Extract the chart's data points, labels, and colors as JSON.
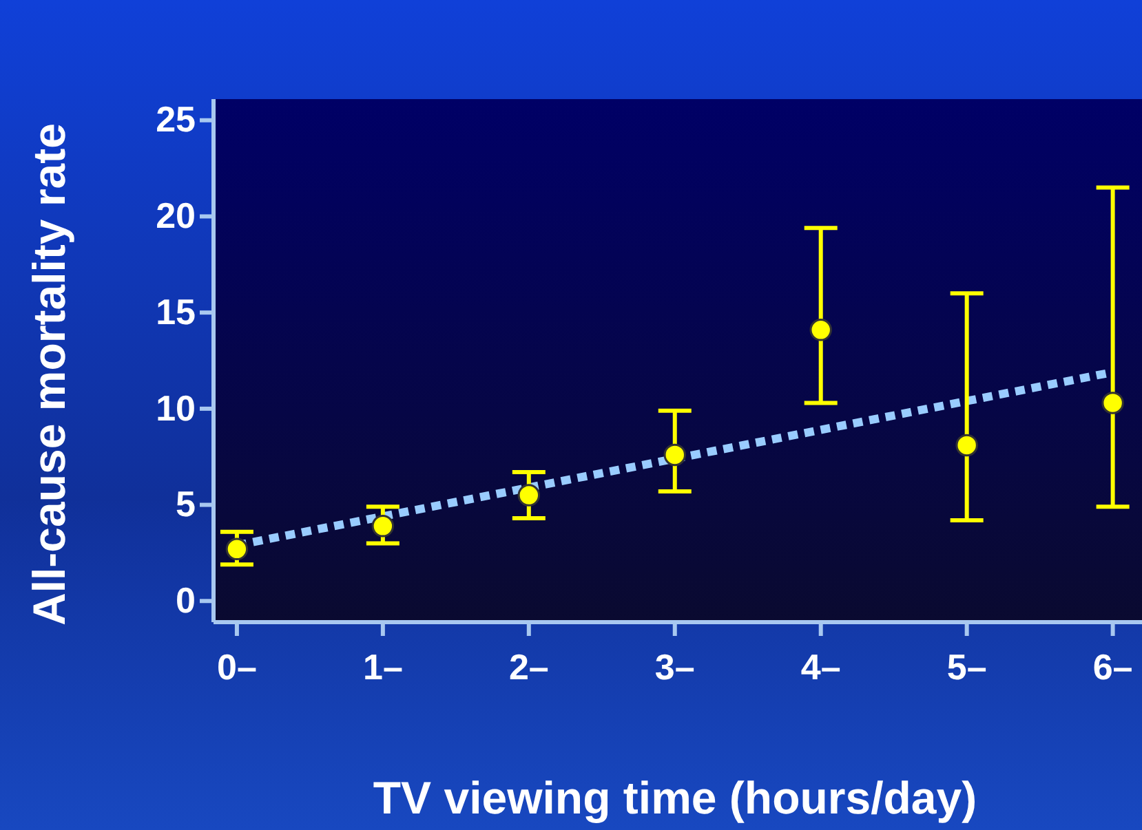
{
  "chart_data": {
    "type": "scatter",
    "xlabel": "TV viewing time (hours/day)",
    "ylabel": "All-cause mortality rate",
    "xlim": [
      -0.16,
      6.2
    ],
    "ylim": [
      -1.1,
      26.1
    ],
    "xticks": [
      {
        "value": 0,
        "label": "0–"
      },
      {
        "value": 1,
        "label": "1–"
      },
      {
        "value": 2,
        "label": "2–"
      },
      {
        "value": 3,
        "label": "3–"
      },
      {
        "value": 4,
        "label": "4–"
      },
      {
        "value": 5,
        "label": "5–"
      },
      {
        "value": 6,
        "label": "6–"
      }
    ],
    "yticks": [
      0,
      5,
      10,
      15,
      20,
      25
    ],
    "marker": "circle",
    "grid": false,
    "series": [
      {
        "color": "#ffff00",
        "x": [
          0,
          1,
          2,
          3,
          4,
          5,
          6
        ],
        "values": [
          2.7,
          3.9,
          5.5,
          7.6,
          14.1,
          8.1,
          10.3
        ],
        "errors": [
          [
            1.9,
            3.6
          ],
          [
            3.0,
            4.9
          ],
          [
            4.3,
            6.7
          ],
          [
            5.7,
            9.9
          ],
          [
            10.3,
            19.4
          ],
          [
            4.2,
            16.0
          ],
          [
            4.9,
            21.5
          ]
        ]
      },
      {
        "type": "line",
        "color": "#99ccff",
        "line_style": "dotted",
        "marker": "none",
        "x": [
          0,
          6
        ],
        "values": [
          2.9,
          11.9
        ]
      }
    ]
  }
}
